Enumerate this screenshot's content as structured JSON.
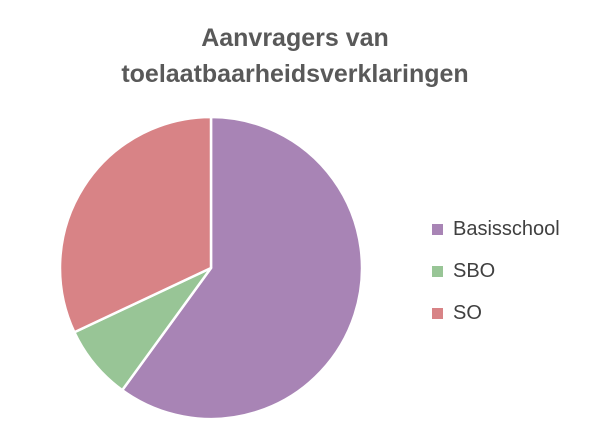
{
  "chart_data": {
    "type": "pie",
    "title_lines": [
      "Aanvragers van",
      "toelaatbaarheidsverklaringen"
    ],
    "categories": [
      "Basisschool",
      "SBO",
      "SO"
    ],
    "values": [
      60,
      8,
      32
    ],
    "unit": "percent",
    "colors": [
      "#A884B5",
      "#98C596",
      "#D88386"
    ],
    "legend_position": "right"
  }
}
